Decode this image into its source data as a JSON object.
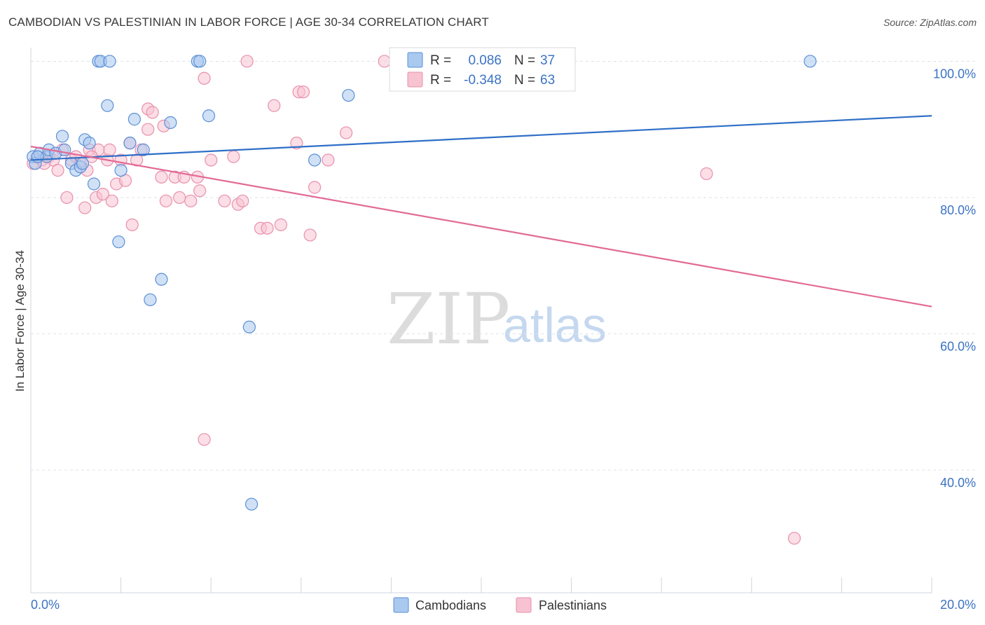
{
  "title": "CAMBODIAN VS PALESTINIAN IN LABOR FORCE | AGE 30-34 CORRELATION CHART",
  "source": "Source: ZipAtlas.com",
  "watermark": {
    "zip": "ZIP",
    "atlas": "atlas"
  },
  "colors": {
    "cambodian_fill": "#a9c9ef",
    "cambodian_stroke": "#5b8fd6",
    "cambodian_line": "#2f6fc7",
    "palestinian_fill": "#f7c2d1",
    "palestinian_stroke": "#e890ad",
    "palestinian_line": "#e26a95",
    "grid": "#dde3ea",
    "axis_text": "#3b73c4"
  },
  "legend": {
    "rows": [
      {
        "r_label": "R =",
        "r_value": "0.086",
        "n_label": "N =",
        "n_value": "37"
      },
      {
        "r_label": "R =",
        "r_value": "-0.348",
        "n_label": "N =",
        "n_value": "63"
      }
    ]
  },
  "bottom_legend": {
    "cambodians": "Cambodians",
    "palestinians": "Palestinians"
  },
  "chart_data": {
    "type": "scatter",
    "title": "CAMBODIAN VS PALESTINIAN IN LABOR FORCE | AGE 30-34 CORRELATION CHART",
    "xlabel": "",
    "ylabel": "In Labor Force | Age 30-34",
    "xlim": [
      0,
      20
    ],
    "ylim": [
      22,
      102
    ],
    "x_tick_labels": [
      "0.0%",
      "20.0%"
    ],
    "y_ticks": [
      40,
      60,
      80,
      100
    ],
    "y_tick_labels": [
      "40.0%",
      "60.0%",
      "80.0%",
      "100.0%"
    ],
    "series": [
      {
        "name": "Cambodians",
        "r": 0.086,
        "n": 37,
        "trend": {
          "x": [
            0,
            20
          ],
          "y": [
            85.5,
            92.0
          ]
        },
        "points": [
          [
            0.05,
            86
          ],
          [
            0.1,
            85
          ],
          [
            0.2,
            86.5
          ],
          [
            0.35,
            86
          ],
          [
            0.4,
            87
          ],
          [
            0.55,
            86.5
          ],
          [
            0.7,
            89
          ],
          [
            0.75,
            87
          ],
          [
            0.9,
            85
          ],
          [
            1.0,
            84
          ],
          [
            1.1,
            84.5
          ],
          [
            1.15,
            85
          ],
          [
            1.2,
            88.5
          ],
          [
            1.3,
            88
          ],
          [
            1.4,
            82
          ],
          [
            1.5,
            100
          ],
          [
            1.55,
            100
          ],
          [
            1.7,
            93.5
          ],
          [
            1.75,
            100
          ],
          [
            1.95,
            73.5
          ],
          [
            2.0,
            84
          ],
          [
            2.2,
            88
          ],
          [
            2.3,
            91.5
          ],
          [
            2.5,
            87
          ],
          [
            2.65,
            65
          ],
          [
            2.9,
            68
          ],
          [
            3.1,
            91
          ],
          [
            3.7,
            100
          ],
          [
            3.75,
            100
          ],
          [
            3.95,
            92
          ],
          [
            4.85,
            61
          ],
          [
            4.9,
            35
          ],
          [
            6.3,
            85.5
          ],
          [
            7.05,
            95
          ],
          [
            8.8,
            100
          ],
          [
            17.3,
            100
          ],
          [
            0.15,
            86
          ]
        ]
      },
      {
        "name": "Palestinians",
        "r": -0.348,
        "n": 63,
        "trend": {
          "x": [
            0,
            20
          ],
          "y": [
            87.5,
            64.0
          ]
        },
        "points": [
          [
            0.05,
            85
          ],
          [
            0.15,
            86
          ],
          [
            0.25,
            85.5
          ],
          [
            0.4,
            86
          ],
          [
            0.5,
            85.5
          ],
          [
            0.6,
            84
          ],
          [
            0.7,
            87
          ],
          [
            0.8,
            80
          ],
          [
            0.9,
            85.5
          ],
          [
            1.0,
            86
          ],
          [
            1.1,
            85
          ],
          [
            1.2,
            78.5
          ],
          [
            1.25,
            84
          ],
          [
            1.3,
            87
          ],
          [
            1.45,
            80
          ],
          [
            1.5,
            87
          ],
          [
            1.6,
            80.5
          ],
          [
            1.7,
            85.5
          ],
          [
            1.75,
            87
          ],
          [
            1.8,
            79.5
          ],
          [
            1.9,
            82
          ],
          [
            2.0,
            85.5
          ],
          [
            2.1,
            82.5
          ],
          [
            2.2,
            88
          ],
          [
            2.25,
            76
          ],
          [
            2.35,
            85.5
          ],
          [
            2.45,
            87
          ],
          [
            2.6,
            90
          ],
          [
            2.6,
            93
          ],
          [
            2.7,
            92.5
          ],
          [
            2.9,
            83
          ],
          [
            2.95,
            90.5
          ],
          [
            3.0,
            79.5
          ],
          [
            3.2,
            83
          ],
          [
            3.3,
            80
          ],
          [
            3.4,
            83
          ],
          [
            3.55,
            79.5
          ],
          [
            3.7,
            83
          ],
          [
            3.75,
            81
          ],
          [
            3.85,
            97.5
          ],
          [
            3.85,
            44.5
          ],
          [
            4.0,
            85.5
          ],
          [
            4.3,
            79.5
          ],
          [
            4.5,
            86
          ],
          [
            4.6,
            79
          ],
          [
            4.7,
            79.5
          ],
          [
            4.8,
            100
          ],
          [
            5.1,
            75.5
          ],
          [
            5.25,
            75.5
          ],
          [
            5.4,
            93.5
          ],
          [
            5.55,
            76
          ],
          [
            5.9,
            88
          ],
          [
            5.95,
            95.5
          ],
          [
            6.05,
            95.5
          ],
          [
            6.2,
            74.5
          ],
          [
            6.3,
            81.5
          ],
          [
            6.6,
            85.5
          ],
          [
            7.0,
            89.5
          ],
          [
            7.85,
            100
          ],
          [
            15.0,
            83.5
          ],
          [
            16.95,
            30
          ],
          [
            0.3,
            85
          ],
          [
            1.35,
            86
          ]
        ]
      }
    ]
  }
}
